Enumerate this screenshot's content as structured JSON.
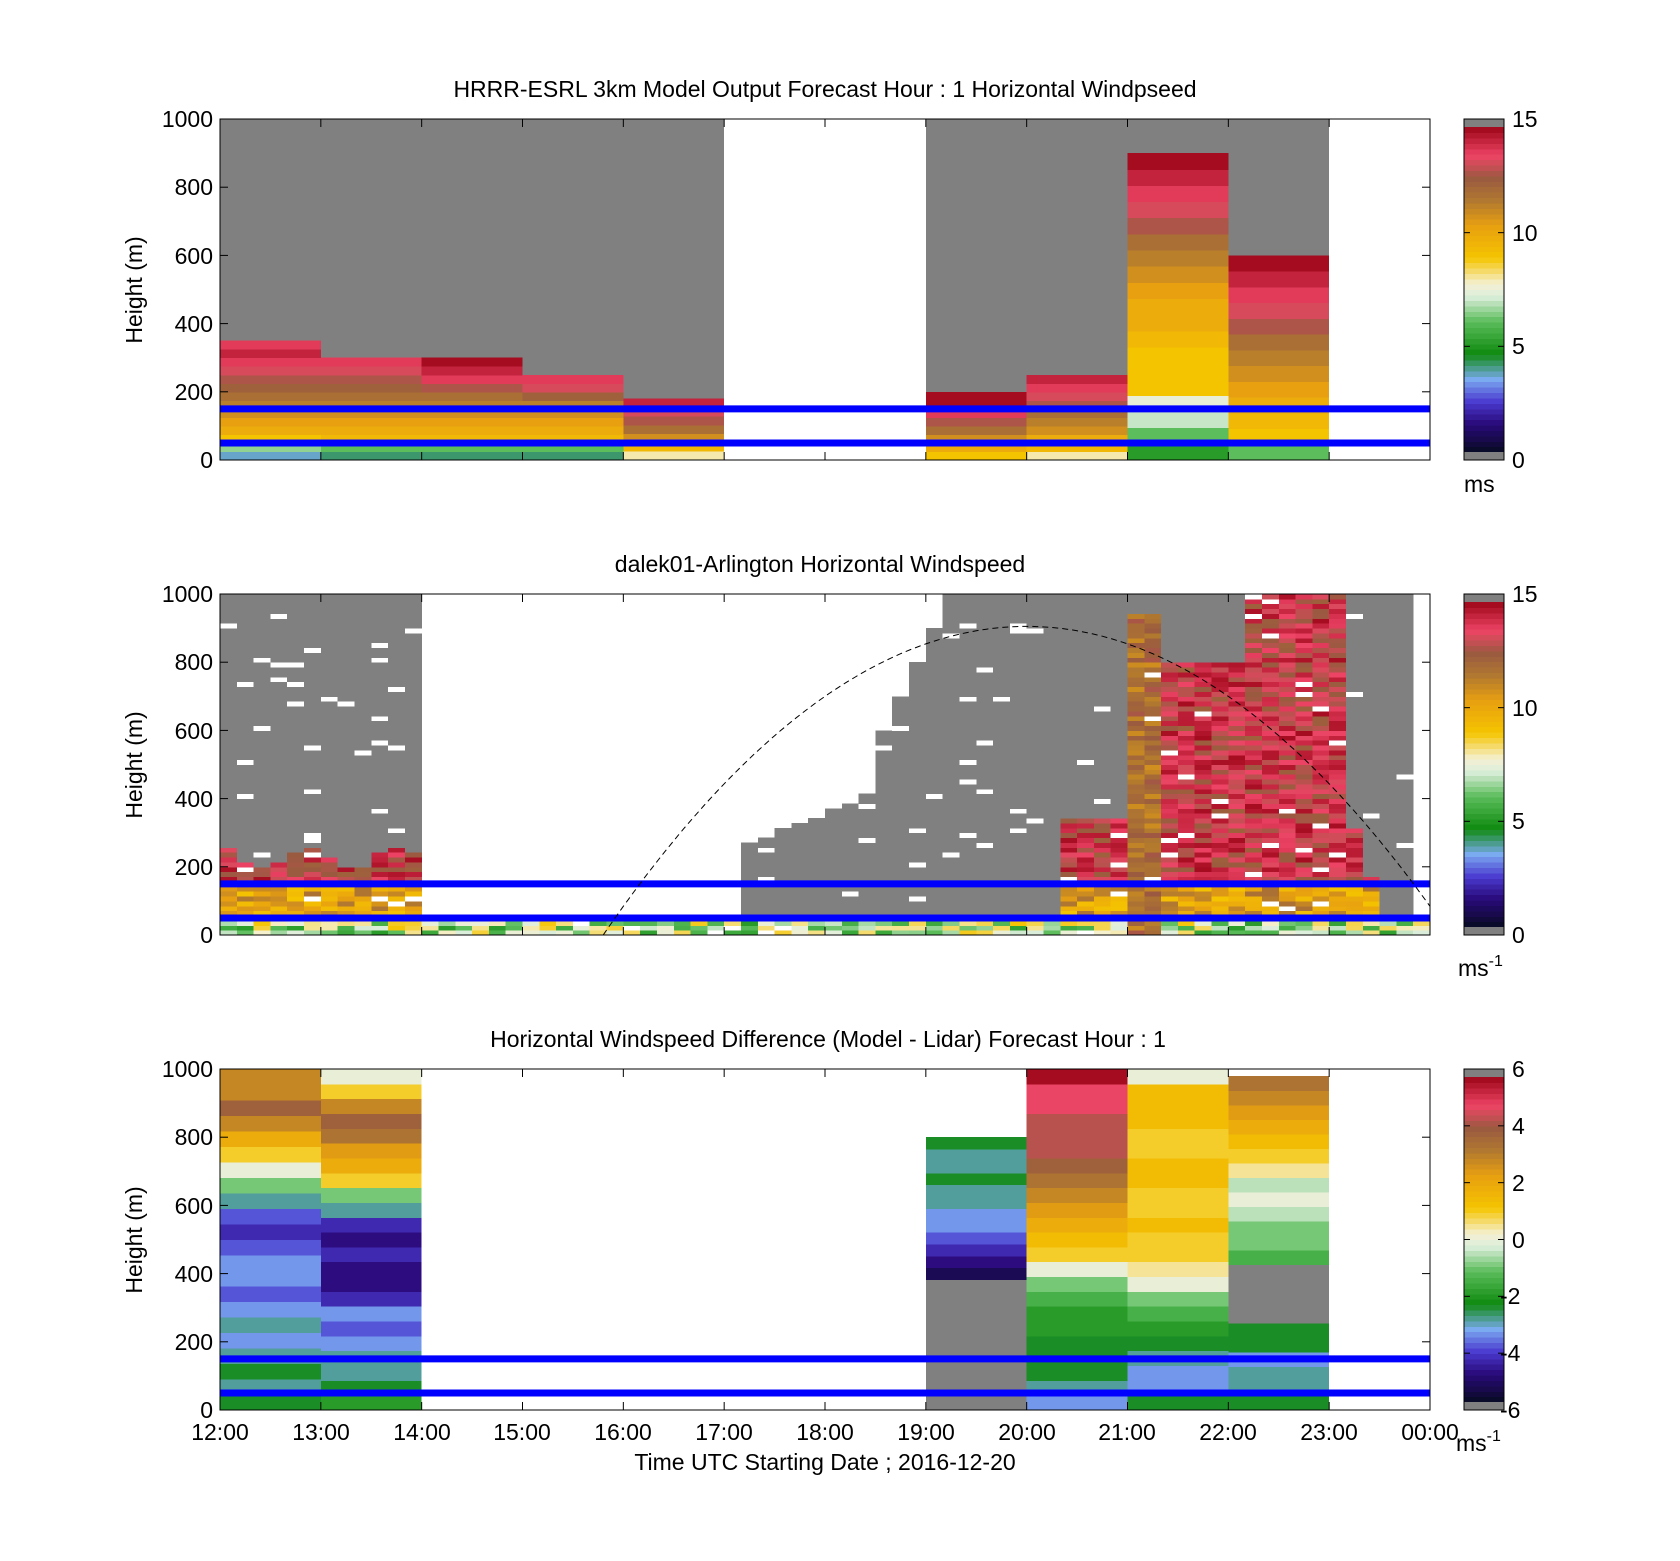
{
  "figure": {
    "xlabel": "Time UTC  Starting Date ; 2016-12-20",
    "xticks": [
      "12:00",
      "13:00",
      "14:00",
      "15:00",
      "16:00",
      "17:00",
      "18:00",
      "19:00",
      "20:00",
      "21:00",
      "22:00",
      "23:00",
      "00:00"
    ],
    "reference_lines_m": [
      50,
      150
    ],
    "reference_line_color": "#0000ff"
  },
  "chart_data": [
    {
      "type": "heatmap",
      "title": "HRRR-ESRL 3km Model Output   Forecast Hour : 1 Horizontal Windpseed",
      "ylabel": "Height (m)",
      "ylim": [
        0,
        1000
      ],
      "yticks": [
        "0",
        "200",
        "400",
        "600",
        "800",
        "1000"
      ],
      "xlim_hours_utc": [
        12,
        24
      ],
      "colorbar": {
        "min": 0,
        "max": 15,
        "ticks": [
          "0",
          "5",
          "10",
          "15"
        ],
        "unit": "ms",
        "unit_sup": "",
        "below_range_color": "#808080"
      },
      "columns": [
        {
          "time": "12:00",
          "top_m": 350,
          "values": [
            3.5,
            6.5,
            9,
            10,
            10.5,
            11,
            11.5,
            12,
            12.5,
            13,
            13.5,
            14,
            14.5,
            14
          ]
        },
        {
          "time": "13:00",
          "top_m": 300,
          "values": [
            4,
            6,
            9.5,
            10,
            10.5,
            11,
            11.5,
            12,
            12.5,
            13,
            13.5,
            14
          ]
        },
        {
          "time": "14:00",
          "top_m": 300,
          "values": [
            4,
            6,
            9.5,
            10,
            10.5,
            11,
            11.5,
            12,
            13,
            14,
            14.5,
            15
          ]
        },
        {
          "time": "15:00",
          "top_m": 250,
          "values": [
            4,
            6,
            9.5,
            10,
            10.5,
            11,
            11.5,
            12.5,
            13.5,
            14
          ]
        },
        {
          "time": "16:00",
          "top_m": 180,
          "values": [
            8,
            9.5,
            11,
            12,
            13,
            13.5,
            14.5
          ]
        },
        {
          "time": "19:00",
          "top_m": 200,
          "values": [
            9,
            10,
            11,
            12,
            13,
            14,
            15,
            15
          ]
        },
        {
          "time": "20:00",
          "top_m": 250,
          "values": [
            8,
            9.5,
            10,
            11,
            11.5,
            12,
            13,
            13.5,
            14,
            14.5
          ]
        },
        {
          "time": "21:00",
          "top_m": 900,
          "values": [
            5,
            6,
            7,
            7.5,
            9,
            9,
            9,
            9.5,
            10,
            10,
            10.5,
            11,
            11.5,
            12,
            13,
            13.5,
            14,
            14.5,
            15
          ]
        },
        {
          "time": "22:00",
          "top_m": 600,
          "values": [
            6,
            9,
            9.5,
            10,
            10.5,
            11,
            11.5,
            12,
            13,
            13.5,
            14,
            14.5,
            15
          ]
        }
      ]
    },
    {
      "type": "heatmap",
      "title": "dalek01-Arlington  Horizontal Windspeed",
      "ylabel": "Height (m)",
      "ylim": [
        0,
        1000
      ],
      "yticks": [
        "0",
        "200",
        "400",
        "600",
        "800",
        "1000"
      ],
      "xlim_hours_utc": [
        12,
        24
      ],
      "colorbar": {
        "min": 0,
        "max": 15,
        "ticks": [
          "0",
          "5",
          "10",
          "15"
        ],
        "unit": "ms",
        "unit_sup": "-1",
        "below_range_color": "#808080"
      },
      "sun_elevation_curve": {
        "color": "#000000",
        "style": "dashed",
        "start_hour": 15.8,
        "peak_hour": 20,
        "end_hour": 24,
        "peak_height_m": 905
      }
    },
    {
      "type": "heatmap",
      "title": "Horizontal Windspeed Difference (Model - Lidar) Forecast Hour : 1",
      "ylabel": "Height (m)",
      "ylim": [
        0,
        1000
      ],
      "yticks": [
        "0",
        "200",
        "400",
        "600",
        "800",
        "1000"
      ],
      "xlim_hours_utc": [
        12,
        24
      ],
      "colorbar": {
        "min": -6,
        "max": 6,
        "ticks": [
          "-6",
          "-4",
          "-2",
          "0",
          "2",
          "4",
          "6"
        ],
        "unit": "ms",
        "unit_sup": "-1",
        "below_range_color": "#808080"
      },
      "columns": [
        {
          "time": "12:00",
          "top_m": 1000,
          "values": [
            -2.5,
            -3,
            -2.5,
            -3,
            -3.5,
            -3,
            -3.5,
            -4,
            -3.5,
            -3.5,
            -4,
            -4.5,
            -4,
            -3,
            -1,
            0,
            1,
            2,
            3,
            4,
            3,
            3
          ]
        },
        {
          "time": "13:00",
          "top_m": 1000,
          "values": [
            -2,
            -2.5,
            -3,
            -3,
            -3.5,
            -4,
            -3.5,
            -4.5,
            -5,
            -5,
            -4.5,
            -5,
            -4.5,
            -3,
            -1,
            1,
            2,
            2.5,
            3.5,
            4,
            3,
            1,
            0
          ]
        },
        {
          "time": "19:00",
          "top_m": 800,
          "values": [
            -7,
            -7,
            -7,
            -7,
            -7,
            -7,
            -7,
            -7,
            -7,
            -7,
            -7,
            -5.5,
            -5,
            -4.5,
            -4,
            -3.5,
            -3.5,
            -3,
            -3,
            -2.5,
            -3,
            -3,
            -2.5
          ]
        },
        {
          "time": "20:00",
          "top_m": 1000,
          "values": [
            -3.5,
            -3,
            -2.5,
            -2.5,
            -2.5,
            -2,
            -2,
            -1.5,
            -1,
            0,
            1,
            1.5,
            2,
            2.5,
            3,
            3.5,
            4,
            4.5,
            4.5,
            4.5,
            5,
            5,
            6
          ]
        },
        {
          "time": "21:00",
          "top_m": 1000,
          "values": [
            -2.5,
            -3.5,
            -3.5,
            -3,
            -2.5,
            -2,
            -1.5,
            -1,
            0,
            0.5,
            1,
            1,
            1.5,
            1,
            1,
            1.5,
            1.5,
            1,
            1,
            1.5,
            1.5,
            1.5,
            0
          ]
        },
        {
          "time": "22:00",
          "top_m": 980,
          "values": [
            -2.5,
            -3,
            -3,
            -3.5,
            -2.5,
            -2.5,
            -99,
            -99,
            -99,
            -99,
            -1.5,
            -1,
            -1,
            -0.5,
            0,
            -0.5,
            0.5,
            1,
            1.5,
            2,
            2.5,
            3,
            3.5
          ]
        }
      ]
    }
  ]
}
